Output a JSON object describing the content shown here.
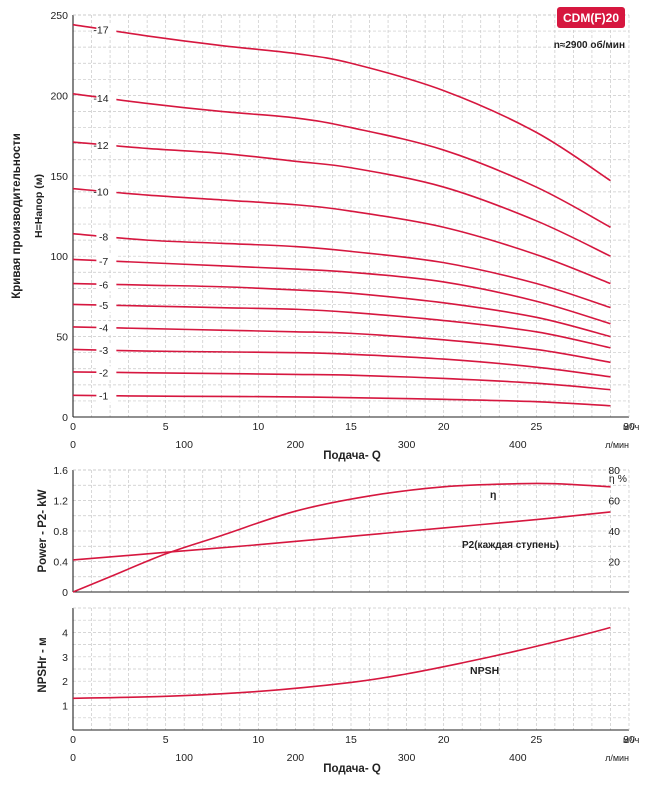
{
  "chart_data": [
    {
      "type": "line",
      "title": "CDM(F)20",
      "subtitle": "n≈2900 об/мин",
      "ylabel_outer": "Кривая производительности",
      "ylabel": "H=Напор (м)",
      "xlabel": "Подача- Q",
      "x_unit": "м³/ч",
      "x2_unit": "л/мин",
      "xlim": [
        0,
        30
      ],
      "ylim": [
        0,
        250
      ],
      "x_ticks": [
        "0",
        "5",
        "10",
        "15",
        "20",
        "25",
        "30"
      ],
      "x2_ticks": [
        "0",
        "100",
        "200",
        "300",
        "400"
      ],
      "y_ticks": [
        "0",
        "50",
        "100",
        "150",
        "200",
        "250"
      ],
      "grid": true,
      "series": [
        {
          "name": "-17",
          "x": [
            0,
            4,
            8,
            12,
            15,
            20,
            25,
            29
          ],
          "y": [
            244,
            237,
            231,
            226,
            220,
            203,
            177,
            147
          ]
        },
        {
          "name": "-14",
          "x": [
            0,
            4,
            8,
            12,
            15,
            20,
            25,
            29
          ],
          "y": [
            201,
            195,
            190,
            186,
            180,
            166,
            143,
            118
          ]
        },
        {
          "name": "-12",
          "x": [
            0,
            4,
            8,
            12,
            15,
            20,
            25,
            29
          ],
          "y": [
            171,
            167,
            164,
            159,
            155,
            143,
            122,
            100
          ]
        },
        {
          "name": "-10",
          "x": [
            0,
            4,
            8,
            12,
            15,
            20,
            25,
            29
          ],
          "y": [
            142,
            138,
            135,
            132,
            128,
            118,
            101,
            83
          ]
        },
        {
          "name": "-8",
          "x": [
            0,
            4,
            8,
            12,
            15,
            20,
            25,
            29
          ],
          "y": [
            114,
            110,
            108,
            106,
            103,
            96,
            83,
            68
          ]
        },
        {
          "name": "-7",
          "x": [
            0,
            4,
            8,
            12,
            15,
            20,
            25,
            29
          ],
          "y": [
            98,
            96,
            94,
            92,
            90,
            84,
            72,
            58
          ]
        },
        {
          "name": "-6",
          "x": [
            0,
            4,
            8,
            12,
            15,
            20,
            25,
            29
          ],
          "y": [
            83,
            82,
            81,
            79,
            77,
            71,
            62,
            50
          ]
        },
        {
          "name": "-5",
          "x": [
            0,
            4,
            8,
            12,
            15,
            20,
            25,
            29
          ],
          "y": [
            70,
            69,
            68,
            67,
            65,
            60,
            53,
            43
          ]
        },
        {
          "name": "-4",
          "x": [
            0,
            4,
            8,
            12,
            15,
            20,
            25,
            29
          ],
          "y": [
            56,
            55,
            54,
            53,
            52,
            48,
            42,
            34
          ]
        },
        {
          "name": "-3",
          "x": [
            0,
            4,
            8,
            12,
            15,
            20,
            25,
            29
          ],
          "y": [
            42,
            41,
            40.5,
            40,
            39,
            36,
            31,
            25
          ]
        },
        {
          "name": "-2",
          "x": [
            0,
            4,
            8,
            12,
            15,
            20,
            25,
            29
          ],
          "y": [
            28,
            27.5,
            27,
            26.5,
            26,
            24,
            21,
            17
          ]
        },
        {
          "name": "-1",
          "x": [
            0,
            4,
            8,
            12,
            15,
            20,
            25,
            29
          ],
          "y": [
            13.5,
            13,
            12.8,
            12.5,
            12,
            11,
            9.5,
            7
          ]
        }
      ]
    },
    {
      "type": "line",
      "ylabel": "Power - P2- kW",
      "y2label": "η %",
      "xlim": [
        0,
        30
      ],
      "ylim": [
        0,
        1.6
      ],
      "y2lim": [
        0,
        80
      ],
      "y_ticks": [
        "0",
        "0.4",
        "0.8",
        "1.2",
        "1.6"
      ],
      "y2_ticks": [
        "20",
        "40",
        "60",
        "80"
      ],
      "grid": true,
      "series": [
        {
          "name": "η",
          "axis": "right",
          "x": [
            0,
            2,
            5,
            8,
            12,
            16,
            20,
            24,
            26,
            29
          ],
          "y": [
            0,
            10,
            25,
            37,
            53,
            63,
            69,
            71,
            71,
            69
          ]
        },
        {
          "name": "P2(каждая ступень)",
          "axis": "left",
          "x": [
            0,
            5,
            10,
            15,
            20,
            25,
            29
          ],
          "y": [
            0.42,
            0.52,
            0.62,
            0.73,
            0.84,
            0.95,
            1.05
          ]
        }
      ]
    },
    {
      "type": "line",
      "ylabel": "NPSHr - м",
      "xlabel": "Подача- Q",
      "x_unit": "м³/ч",
      "x2_unit": "л/мин",
      "xlim": [
        0,
        30
      ],
      "ylim": [
        0,
        5
      ],
      "y_ticks": [
        "1",
        "2",
        "3",
        "4"
      ],
      "x_ticks": [
        "0",
        "5",
        "10",
        "15",
        "20",
        "25",
        "30"
      ],
      "x2_ticks": [
        "0",
        "100",
        "200",
        "300",
        "400"
      ],
      "grid": true,
      "series": [
        {
          "name": "NPSH",
          "x": [
            0,
            5,
            10,
            15,
            18,
            21,
            24,
            27,
            29
          ],
          "y": [
            1.3,
            1.38,
            1.58,
            1.95,
            2.3,
            2.75,
            3.25,
            3.8,
            4.2
          ]
        }
      ]
    }
  ]
}
